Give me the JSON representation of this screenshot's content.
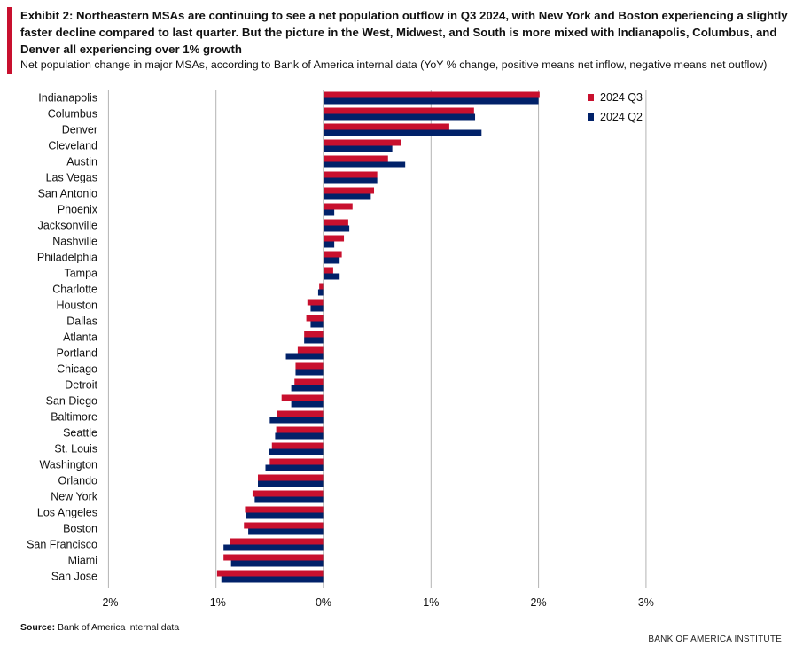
{
  "header": {
    "title": "Exhibit 2: Northeastern MSAs are continuing to see a net population outflow in Q3 2024, with New York and Boston experiencing a slightly faster decline compared to last quarter. But the picture in the West, Midwest, and South is more mixed with Indianapolis, Columbus, and Denver all experiencing over 1% growth",
    "subtitle": "Net population change in major MSAs, according to Bank of America internal data (YoY % change, positive means net inflow, negative means net outflow)"
  },
  "footer": {
    "source_label": "Source:",
    "source_text": " Bank of America internal data",
    "brand": "BANK OF AMERICA INSTITUTE"
  },
  "colors": {
    "q3": "#c8102e",
    "q2": "#012169",
    "grid": "#b3b3b3",
    "accent": "#c8102e"
  },
  "chart_data": {
    "type": "bar",
    "orientation": "horizontal",
    "categories": [
      "Indianapolis",
      "Columbus",
      "Denver",
      "Cleveland",
      "Austin",
      "Las Vegas",
      "San Antonio",
      "Phoenix",
      "Jacksonville",
      "Nashville",
      "Philadelphia",
      "Tampa",
      "Charlotte",
      "Houston",
      "Dallas",
      "Atlanta",
      "Portland",
      "Chicago",
      "Detroit",
      "San Diego",
      "Baltimore",
      "Seattle",
      "St. Louis",
      "Washington",
      "Orlando",
      "New York",
      "Los Angeles",
      "Boston",
      "San Francisco",
      "Miami",
      "San Jose"
    ],
    "series": [
      {
        "name": "2024 Q3",
        "values": [
          2.01,
          1.4,
          1.17,
          0.72,
          0.6,
          0.5,
          0.47,
          0.27,
          0.23,
          0.19,
          0.17,
          0.09,
          -0.04,
          -0.15,
          -0.16,
          -0.18,
          -0.24,
          -0.26,
          -0.27,
          -0.39,
          -0.43,
          -0.44,
          -0.48,
          -0.5,
          -0.61,
          -0.66,
          -0.73,
          -0.74,
          -0.87,
          -0.93,
          -0.99
        ]
      },
      {
        "name": "2024 Q2",
        "values": [
          2.0,
          1.41,
          1.47,
          0.64,
          0.76,
          0.5,
          0.44,
          0.1,
          0.24,
          0.1,
          0.15,
          0.15,
          -0.05,
          -0.12,
          -0.12,
          -0.18,
          -0.35,
          -0.26,
          -0.3,
          -0.3,
          -0.5,
          -0.45,
          -0.51,
          -0.54,
          -0.61,
          -0.64,
          -0.72,
          -0.7,
          -0.93,
          -0.86,
          -0.95
        ]
      }
    ],
    "xlim": [
      -2,
      3
    ],
    "xticks": [
      -2,
      -1,
      0,
      1,
      2,
      3
    ],
    "xtick_labels": [
      "-2%",
      "-1%",
      "0%",
      "1%",
      "2%",
      "3%"
    ],
    "grid": "vertical",
    "legend_position": "top-right"
  }
}
